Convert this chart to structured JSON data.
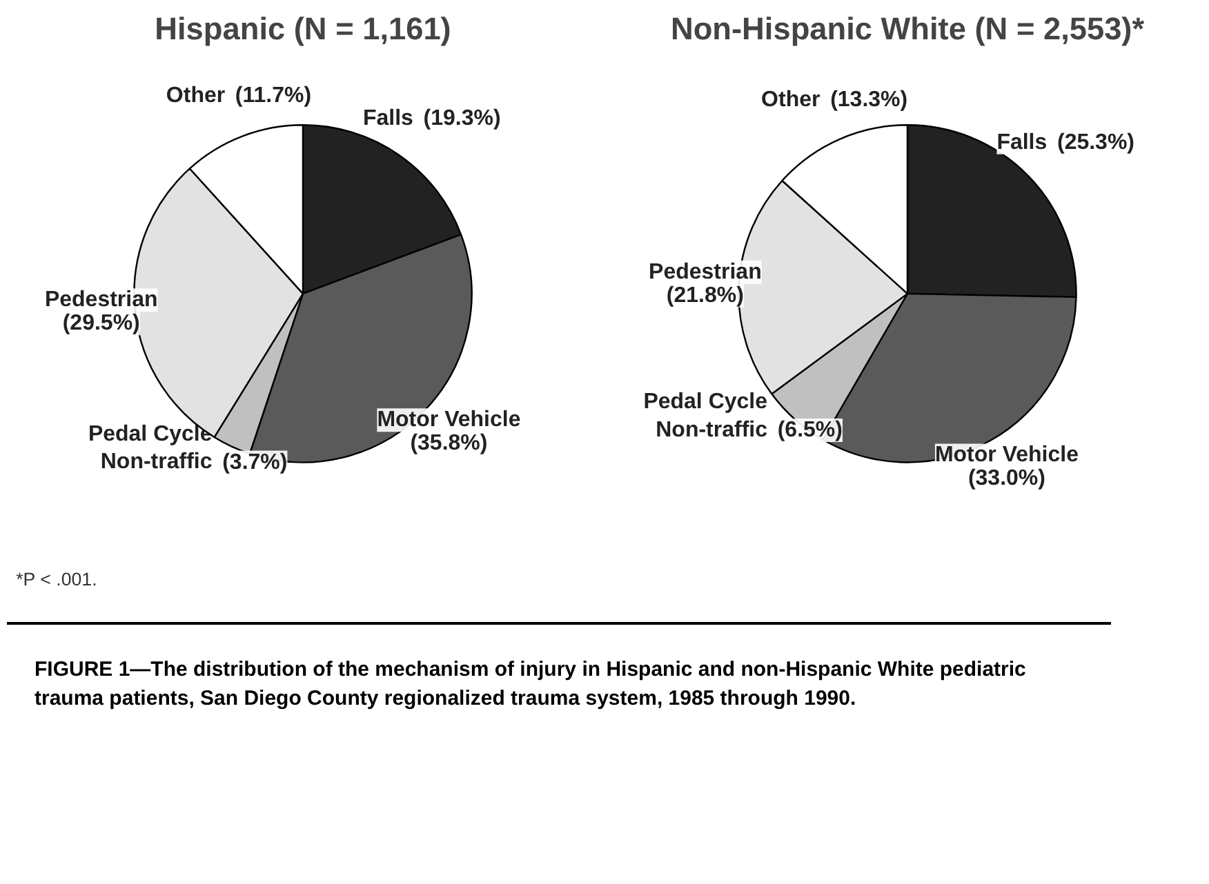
{
  "chart_data": [
    {
      "type": "pie",
      "title": "Hispanic (N = 1,161)",
      "categories": [
        "Falls",
        "Motor Vehicle",
        "Pedal Cycle\nNon-traffic",
        "Pedestrian",
        "Other"
      ],
      "values": [
        19.3,
        35.8,
        3.7,
        29.5,
        11.7
      ],
      "colors": [
        "#222222",
        "#5a5a5a",
        "#c0c0c0",
        "#e2e2e2",
        "#ffffff"
      ],
      "value_labels": [
        "(19.3%)",
        "(35.8%)",
        "(3.7%)",
        "(29.5%)",
        "(11.7%)"
      ],
      "annotations": [
        "*P < .001."
      ]
    },
    {
      "type": "pie",
      "title": "Non-Hispanic White (N = 2,553)*",
      "categories": [
        "Falls",
        "Motor Vehicle",
        "Pedal Cycle\nNon-traffic",
        "Pedestrian",
        "Other"
      ],
      "values": [
        25.3,
        33.0,
        6.5,
        21.8,
        13.3
      ],
      "colors": [
        "#222222",
        "#5a5a5a",
        "#c0c0c0",
        "#e2e2e2",
        "#ffffff"
      ],
      "value_labels": [
        "(25.3%)",
        "(33.0%)",
        "(6.5%)",
        "(21.8%)",
        "(13.3%)"
      ],
      "annotations": [
        "FIGURE 1—The distribution of the mechanism of injury in Hispanic and non-Hispanic White pediatric trauma patients, San Diego County regionalized trauma system, 1985 through 1990."
      ]
    }
  ]
}
